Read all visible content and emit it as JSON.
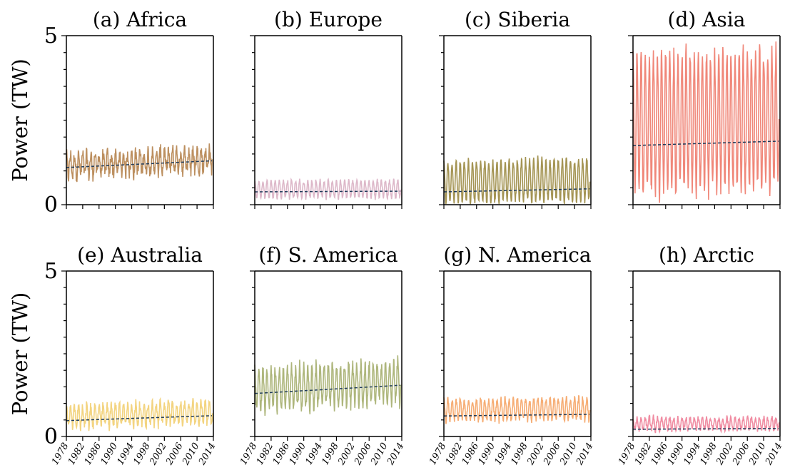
{
  "chart_data": [
    {
      "type": "line",
      "title": "(a) Africa",
      "ylabel": "Power (TW)",
      "ylim": [
        0,
        5
      ],
      "yticks": [
        0,
        5
      ],
      "xlim": [
        1978,
        2014
      ],
      "series": [
        {
          "color": "#b5834e",
          "mean": 1.15,
          "amplitude": 0.3,
          "noise": 0.22,
          "trend": [
            1.1,
            1.3
          ]
        }
      ]
    },
    {
      "type": "line",
      "title": "(b) Europe",
      "ylim": [
        0,
        5
      ],
      "xlim": [
        1978,
        2014
      ],
      "series": [
        {
          "color": "#d9b0c3",
          "mean": 0.45,
          "amplitude": 0.25,
          "noise": 0.05,
          "trend": [
            0.38,
            0.4
          ]
        }
      ]
    },
    {
      "type": "line",
      "title": "(c) Siberia",
      "ylim": [
        0,
        5
      ],
      "xlim": [
        1978,
        2014
      ],
      "series": [
        {
          "color": "#9a8840",
          "mean": 0.65,
          "amplitude": 0.6,
          "noise": 0.07,
          "trend": [
            0.38,
            0.47
          ]
        }
      ]
    },
    {
      "type": "line",
      "title": "(d) Asia",
      "ylim": [
        0,
        5
      ],
      "xlim": [
        1978,
        2014
      ],
      "series": [
        {
          "color": "#ee7a6a",
          "mean": 2.4,
          "amplitude": 2.0,
          "noise": 0.12,
          "trend": [
            1.75,
            1.88
          ]
        }
      ]
    },
    {
      "type": "line",
      "title": "(e) Australia",
      "ylabel": "Power (TW)",
      "ylim": [
        0,
        5
      ],
      "yticks": [
        0,
        5
      ],
      "xlim": [
        1978,
        2014
      ],
      "xticks": [
        1978,
        1982,
        1986,
        1990,
        1994,
        1998,
        2002,
        2006,
        2010,
        2014
      ],
      "series": [
        {
          "color": "#f2cf72",
          "mean": 0.6,
          "amplitude": 0.3,
          "noise": 0.15,
          "trend": [
            0.48,
            0.63
          ]
        }
      ]
    },
    {
      "type": "line",
      "title": "(f) S. America",
      "ylim": [
        0,
        5
      ],
      "xlim": [
        1978,
        2014
      ],
      "xticks": [
        1978,
        1982,
        1986,
        1990,
        1994,
        1998,
        2002,
        2006,
        2010,
        2014
      ],
      "series": [
        {
          "color": "#a5ae6e",
          "mean": 1.4,
          "amplitude": 0.6,
          "noise": 0.18,
          "trend": [
            1.3,
            1.55
          ]
        }
      ]
    },
    {
      "type": "line",
      "title": "(g) N. America",
      "ylim": [
        0,
        5
      ],
      "xlim": [
        1978,
        2014
      ],
      "xticks": [
        1978,
        1982,
        1986,
        1990,
        1994,
        1998,
        2002,
        2006,
        2010,
        2014
      ],
      "series": [
        {
          "color": "#f5a465",
          "mean": 0.8,
          "amplitude": 0.3,
          "noise": 0.1,
          "trend": [
            0.62,
            0.67
          ]
        }
      ]
    },
    {
      "type": "line",
      "title": "(h) Arctic",
      "ylim": [
        0,
        5
      ],
      "xlim": [
        1978,
        2014
      ],
      "xticks": [
        1978,
        1982,
        1986,
        1990,
        1994,
        1998,
        2002,
        2006,
        2010,
        2014
      ],
      "series": [
        {
          "color": "#ee7f98",
          "mean": 0.38,
          "amplitude": 0.18,
          "noise": 0.08,
          "trend": [
            0.22,
            0.24
          ]
        }
      ]
    }
  ]
}
